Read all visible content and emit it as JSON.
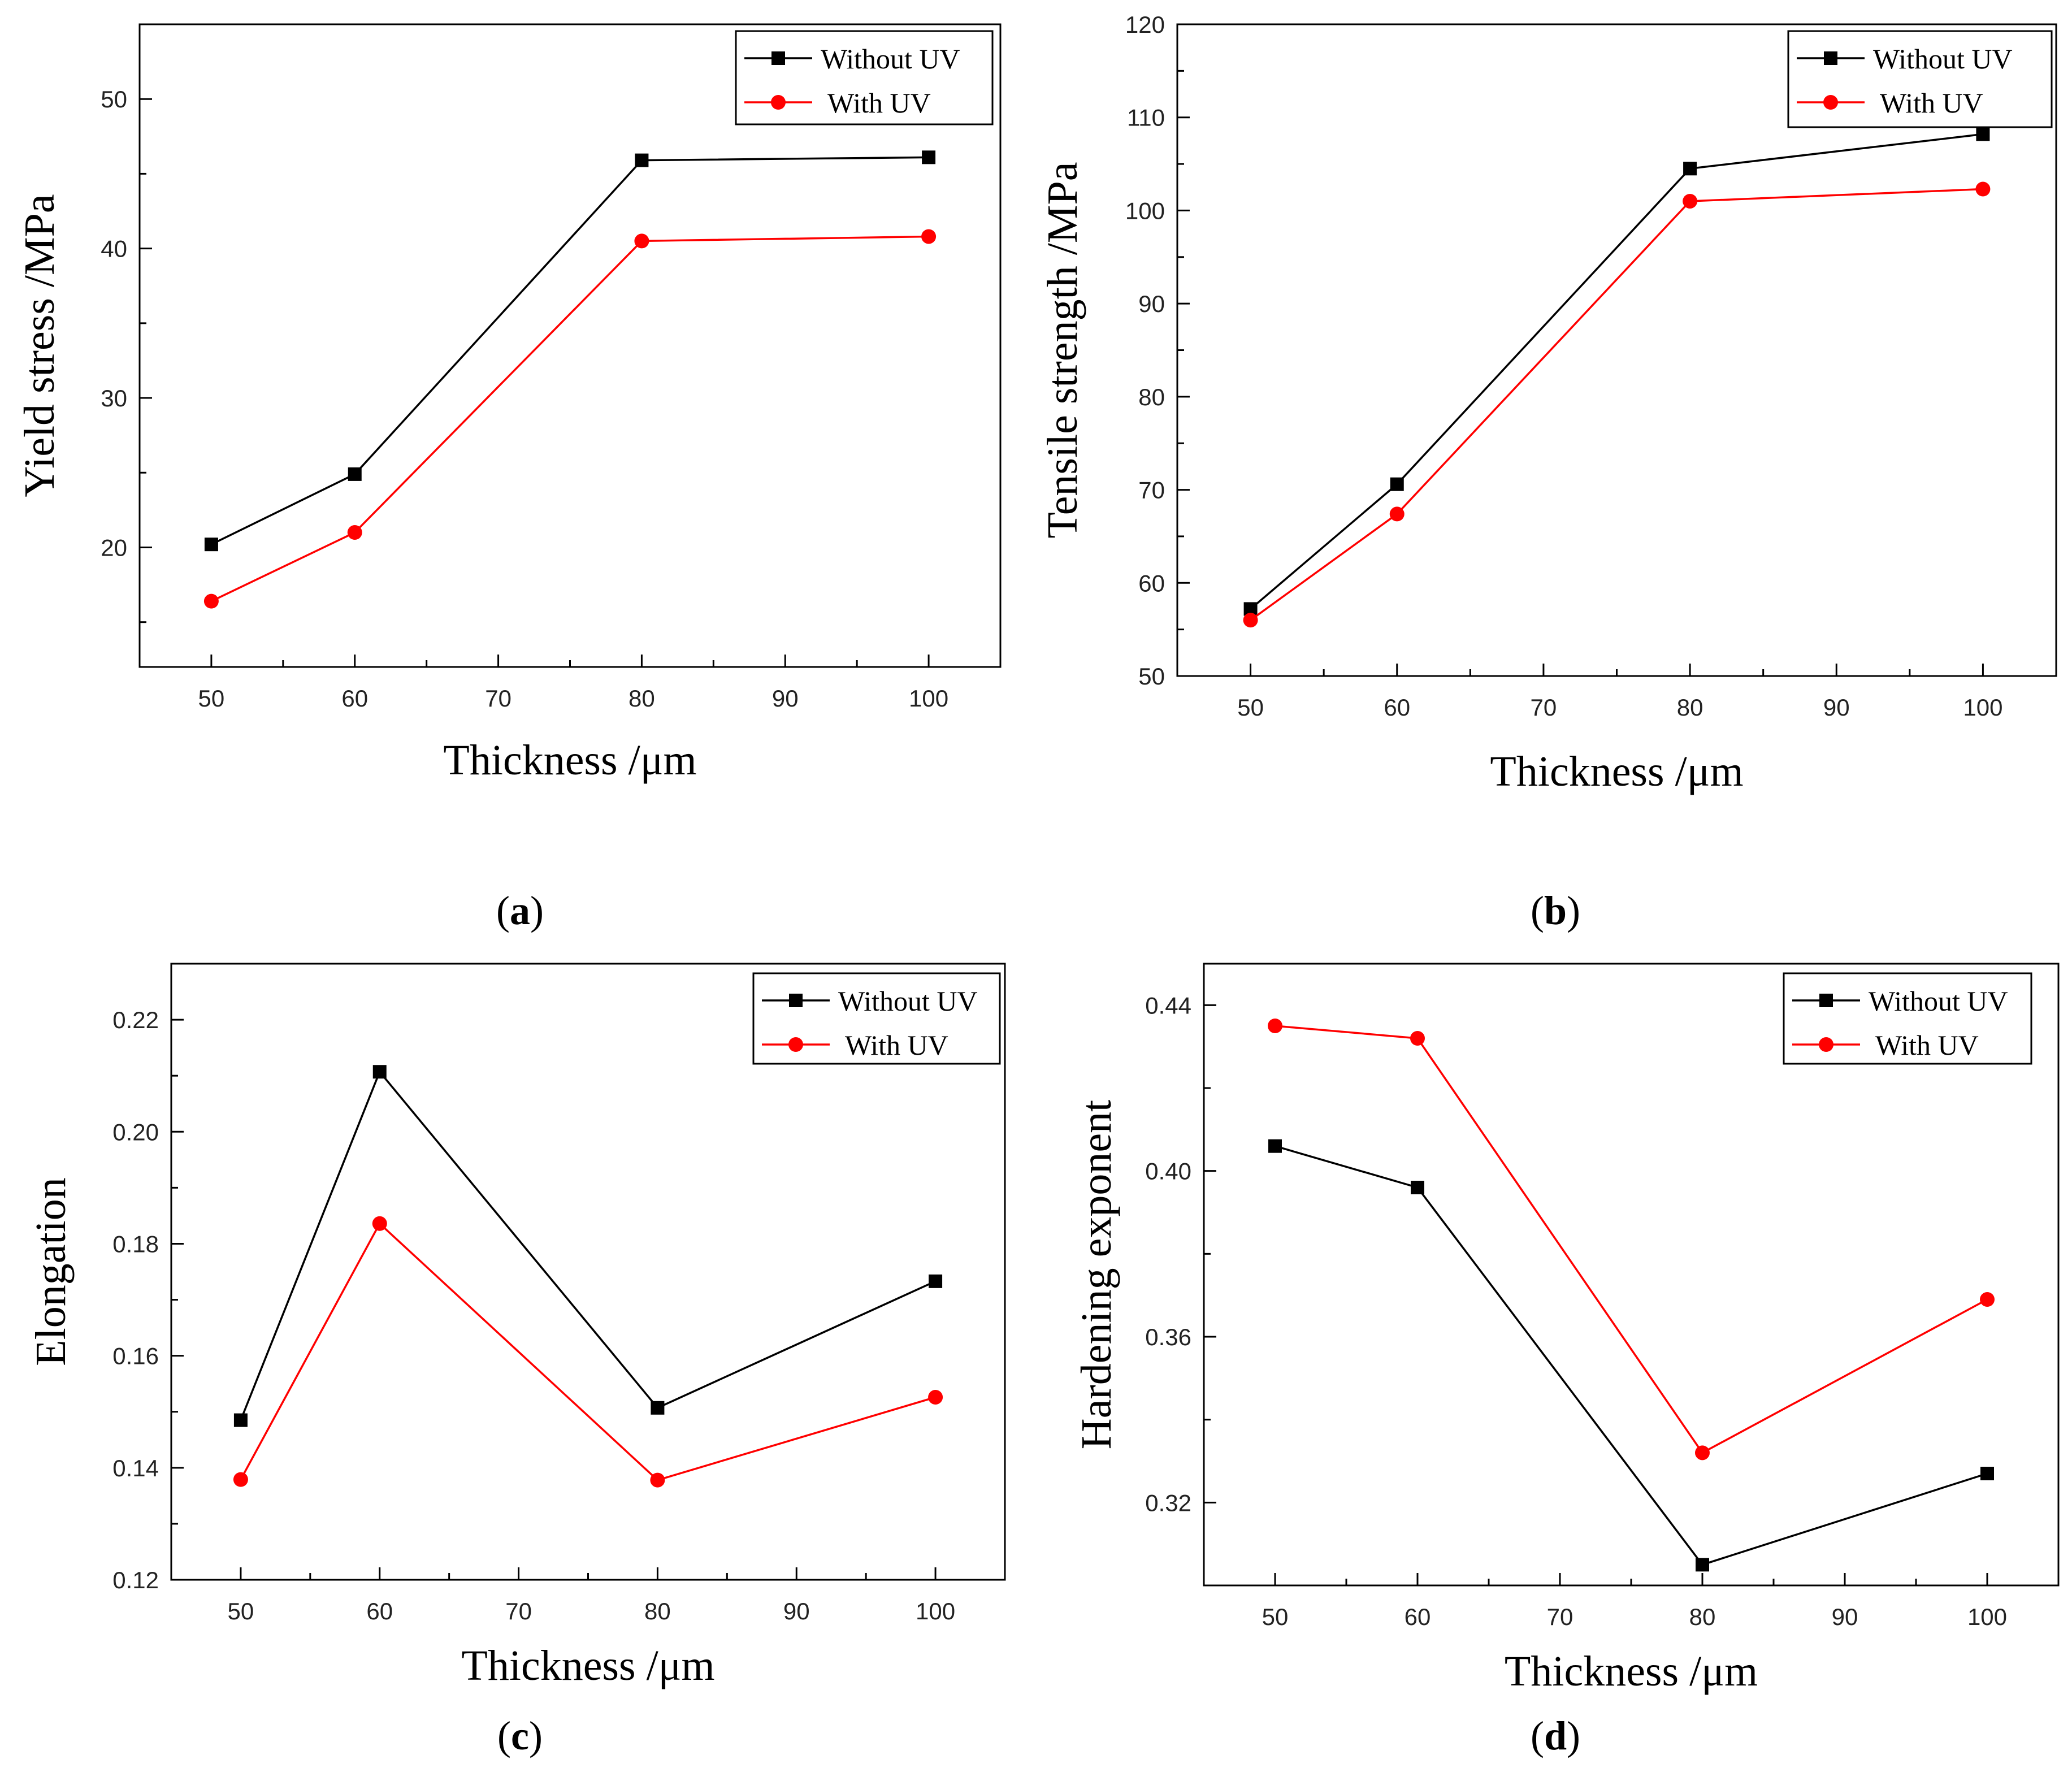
{
  "chart_data": [
    {
      "type": "line",
      "panel": "a",
      "caption_letter": "a",
      "title": "",
      "xlabel": "Thickness /μm",
      "ylabel": "Yield stress /MPa",
      "xlim": [
        45,
        105
      ],
      "ylim": [
        12,
        55
      ],
      "x_ticks": [
        50,
        60,
        70,
        80,
        90,
        100
      ],
      "x_tick_labels": [
        "50",
        "60",
        "70",
        "80",
        "90",
        "100"
      ],
      "y_ticks": [
        20,
        30,
        40,
        50
      ],
      "y_tick_labels": [
        "20",
        "30",
        "40",
        "50"
      ],
      "legend_position": "top-right",
      "grid": false,
      "series": [
        {
          "name": "Without UV",
          "color": "#000000",
          "marker": "square",
          "x": [
            50,
            60,
            80,
            100
          ],
          "y": [
            20.2,
            24.9,
            45.9,
            46.1
          ]
        },
        {
          "name": "With UV",
          "color": "#ff0000",
          "marker": "circle",
          "x": [
            50,
            60,
            80,
            100
          ],
          "y": [
            16.4,
            21.0,
            40.5,
            40.8
          ]
        }
      ]
    },
    {
      "type": "line",
      "panel": "b",
      "caption_letter": "b",
      "title": "",
      "xlabel": "Thickness /μm",
      "ylabel": "Tensile strength /MPa",
      "xlim": [
        45,
        105
      ],
      "ylim": [
        50,
        120
      ],
      "x_ticks": [
        50,
        60,
        70,
        80,
        90,
        100
      ],
      "x_tick_labels": [
        "50",
        "60",
        "70",
        "80",
        "90",
        "100"
      ],
      "y_ticks": [
        50,
        60,
        70,
        80,
        90,
        100,
        110,
        120
      ],
      "y_tick_labels": [
        "50",
        "60",
        "70",
        "80",
        "90",
        "100",
        "110",
        "120"
      ],
      "legend_position": "top-right",
      "grid": false,
      "series": [
        {
          "name": "Without UV",
          "color": "#000000",
          "marker": "square",
          "x": [
            50,
            60,
            80,
            100
          ],
          "y": [
            57.2,
            70.6,
            104.5,
            108.2
          ]
        },
        {
          "name": "With UV",
          "color": "#ff0000",
          "marker": "circle",
          "x": [
            50,
            60,
            80,
            100
          ],
          "y": [
            56.0,
            67.4,
            101.0,
            102.3
          ]
        }
      ]
    },
    {
      "type": "line",
      "panel": "c",
      "caption_letter": "c",
      "title": "",
      "xlabel": "Thickness /μm",
      "ylabel": "Elongation",
      "xlim": [
        45,
        105
      ],
      "ylim": [
        0.12,
        0.23
      ],
      "x_ticks": [
        50,
        60,
        70,
        80,
        90,
        100
      ],
      "x_tick_labels": [
        "50",
        "60",
        "70",
        "80",
        "90",
        "100"
      ],
      "y_ticks": [
        0.12,
        0.14,
        0.16,
        0.18,
        0.2,
        0.22
      ],
      "y_tick_labels": [
        "0.12",
        "0.14",
        "0.16",
        "0.18",
        "0.20",
        "0.22"
      ],
      "legend_position": "top-right",
      "grid": false,
      "series": [
        {
          "name": "Without UV",
          "color": "#000000",
          "marker": "square",
          "x": [
            50,
            60,
            80,
            100
          ],
          "y": [
            0.1485,
            0.2107,
            0.1507,
            0.1733
          ]
        },
        {
          "name": "With UV",
          "color": "#ff0000",
          "marker": "circle",
          "x": [
            50,
            60,
            80,
            100
          ],
          "y": [
            0.1379,
            0.1836,
            0.1378,
            0.1526
          ]
        }
      ]
    },
    {
      "type": "line",
      "panel": "d",
      "caption_letter": "d",
      "title": "",
      "xlabel": "Thickness /μm",
      "ylabel": "Hardening exponent",
      "xlim": [
        45,
        105
      ],
      "ylim": [
        0.3,
        0.45
      ],
      "x_ticks": [
        50,
        60,
        70,
        80,
        90,
        100
      ],
      "x_tick_labels": [
        "50",
        "60",
        "70",
        "80",
        "90",
        "100"
      ],
      "y_ticks": [
        0.32,
        0.36,
        0.4,
        0.44
      ],
      "y_tick_labels": [
        "0.32",
        "0.36",
        "0.40",
        "0.44"
      ],
      "legend_position": "top-right",
      "grid": false,
      "series": [
        {
          "name": "Without UV",
          "color": "#000000",
          "marker": "square",
          "x": [
            50,
            60,
            80,
            100
          ],
          "y": [
            0.406,
            0.396,
            0.305,
            0.327
          ]
        },
        {
          "name": "With UV",
          "color": "#ff0000",
          "marker": "circle",
          "x": [
            50,
            60,
            80,
            100
          ],
          "y": [
            0.435,
            0.432,
            0.332,
            0.369
          ]
        }
      ]
    }
  ]
}
